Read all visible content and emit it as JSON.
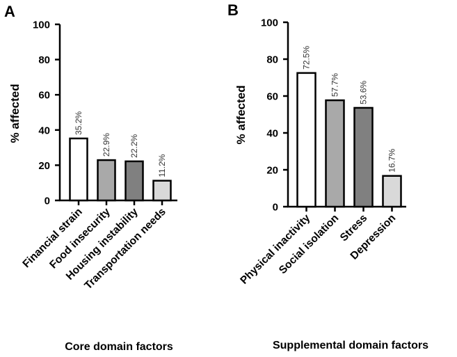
{
  "chart_data": [
    {
      "type": "bar",
      "panel": "A",
      "title": "",
      "xlabel": "Core domain factors",
      "ylabel": "% affected",
      "ylim": [
        0,
        100
      ],
      "yticks": [
        0,
        20,
        40,
        60,
        80,
        100
      ],
      "categories": [
        "Financial strain",
        "Food insecurity",
        "Housing instability",
        "Transportation needs"
      ],
      "values": [
        35.2,
        22.9,
        22.2,
        11.2
      ],
      "data_labels": [
        "35.2%",
        "22.9%",
        "22.2%",
        "11.2%"
      ],
      "bar_colors": [
        "#ffffff",
        "#a9a9a9",
        "#808080",
        "#d9d9d9"
      ],
      "grid": false
    },
    {
      "type": "bar",
      "panel": "B",
      "title": "",
      "xlabel": "Supplemental domain factors",
      "ylabel": "% affected",
      "ylim": [
        0,
        100
      ],
      "yticks": [
        0,
        20,
        40,
        60,
        80,
        100
      ],
      "categories": [
        "Physical inactivity",
        "Social isolation",
        "Stress",
        "Depression"
      ],
      "values": [
        72.5,
        57.7,
        53.6,
        16.7
      ],
      "data_labels": [
        "72.5%",
        "57.7%",
        "53.6%",
        "16.7%"
      ],
      "bar_colors": [
        "#ffffff",
        "#a9a9a9",
        "#808080",
        "#d9d9d9"
      ],
      "grid": false
    }
  ]
}
